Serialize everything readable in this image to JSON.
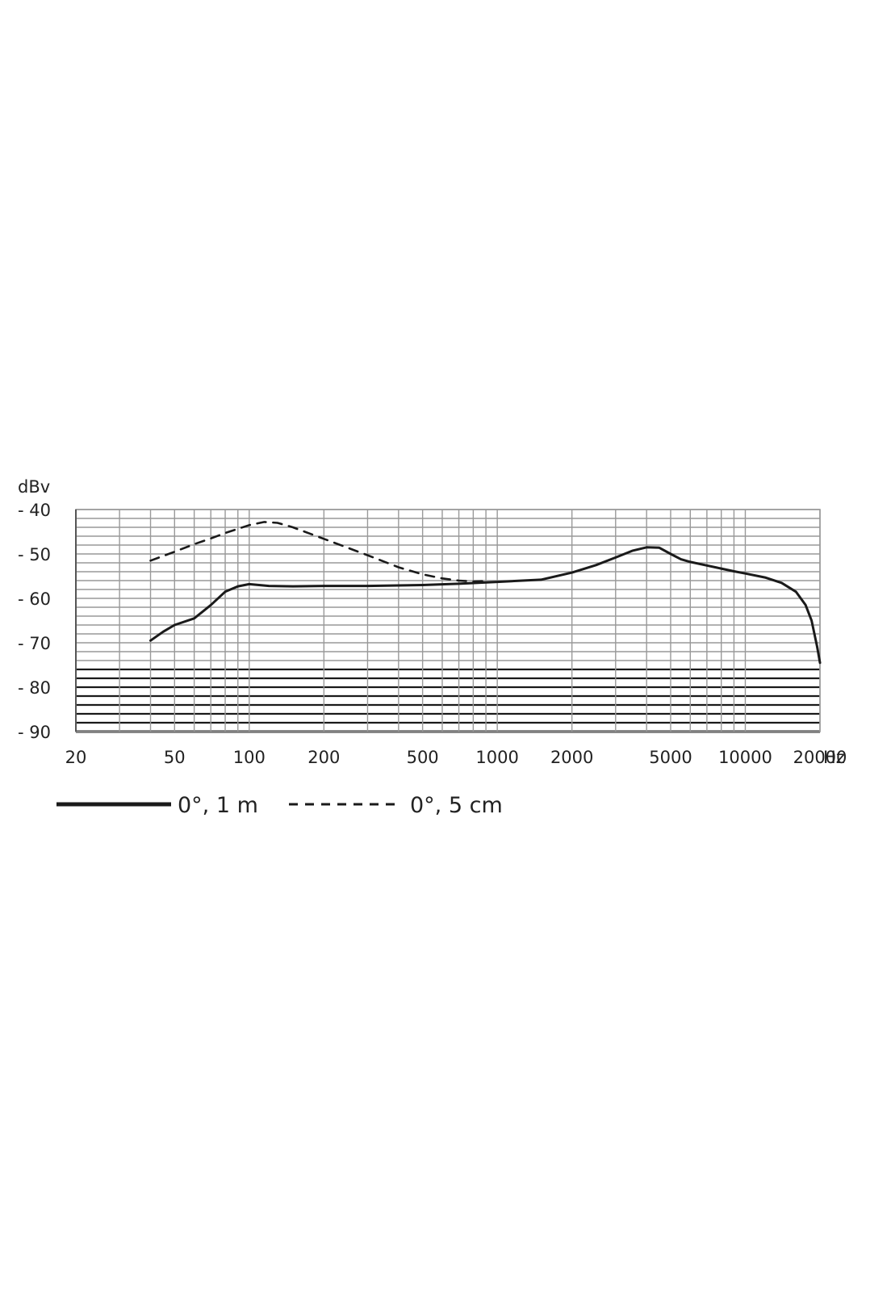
{
  "chart_data": {
    "type": "line",
    "ylabel": "dBv",
    "xunit": "Hz",
    "x_scale": "log",
    "xlim": [
      20,
      20000
    ],
    "ylim": [
      -90,
      -40
    ],
    "grid": true,
    "colors": {
      "line": "#1a1a1a",
      "grid": "#999999"
    },
    "x_ticks": [
      {
        "value": 20,
        "label": "20"
      },
      {
        "value": 50,
        "label": "50"
      },
      {
        "value": 100,
        "label": "100"
      },
      {
        "value": 200,
        "label": "200"
      },
      {
        "value": 500,
        "label": "500"
      },
      {
        "value": 1000,
        "label": "1000"
      },
      {
        "value": 2000,
        "label": "2000"
      },
      {
        "value": 5000,
        "label": "5000"
      },
      {
        "value": 10000,
        "label": "10000"
      },
      {
        "value": 20000,
        "label": "20000"
      }
    ],
    "y_ticks": [
      {
        "value": -40,
        "label": "- 40"
      },
      {
        "value": -50,
        "label": "- 50"
      },
      {
        "value": -60,
        "label": "- 60"
      },
      {
        "value": -70,
        "label": "- 70"
      },
      {
        "value": -80,
        "label": "- 80"
      },
      {
        "value": -90,
        "label": "- 90"
      }
    ],
    "series": [
      {
        "name": "0°, 1 m",
        "style": "solid",
        "points": [
          [
            40,
            -69.5
          ],
          [
            45,
            -67.5
          ],
          [
            50,
            -66
          ],
          [
            60,
            -64.5
          ],
          [
            70,
            -61.5
          ],
          [
            80,
            -58.5
          ],
          [
            90,
            -57.3
          ],
          [
            100,
            -56.8
          ],
          [
            120,
            -57.2
          ],
          [
            150,
            -57.3
          ],
          [
            200,
            -57.2
          ],
          [
            300,
            -57.2
          ],
          [
            500,
            -57
          ],
          [
            700,
            -56.7
          ],
          [
            1000,
            -56.3
          ],
          [
            1500,
            -55.8
          ],
          [
            2000,
            -54.2
          ],
          [
            2500,
            -52.5
          ],
          [
            3000,
            -50.8
          ],
          [
            3500,
            -49.3
          ],
          [
            4000,
            -48.5
          ],
          [
            4500,
            -48.6
          ],
          [
            5000,
            -50
          ],
          [
            5500,
            -51.2
          ],
          [
            6000,
            -51.8
          ],
          [
            7000,
            -52.6
          ],
          [
            8000,
            -53.3
          ],
          [
            9000,
            -53.9
          ],
          [
            10000,
            -54.4
          ],
          [
            12000,
            -55.3
          ],
          [
            14000,
            -56.5
          ],
          [
            16000,
            -58.5
          ],
          [
            17500,
            -61.5
          ],
          [
            18500,
            -65
          ],
          [
            19500,
            -71
          ],
          [
            20000,
            -74.5
          ]
        ]
      },
      {
        "name": "0°, 5 cm",
        "style": "dashed",
        "points": [
          [
            40,
            -51.5
          ],
          [
            50,
            -49.5
          ],
          [
            60,
            -47.8
          ],
          [
            70,
            -46.5
          ],
          [
            80,
            -45.3
          ],
          [
            100,
            -43.5
          ],
          [
            115,
            -42.8
          ],
          [
            130,
            -43
          ],
          [
            150,
            -44
          ],
          [
            200,
            -46.6
          ],
          [
            300,
            -50.3
          ],
          [
            400,
            -53
          ],
          [
            500,
            -54.6
          ],
          [
            600,
            -55.5
          ],
          [
            700,
            -56
          ],
          [
            800,
            -56.2
          ],
          [
            900,
            -56.1
          ]
        ]
      }
    ]
  }
}
